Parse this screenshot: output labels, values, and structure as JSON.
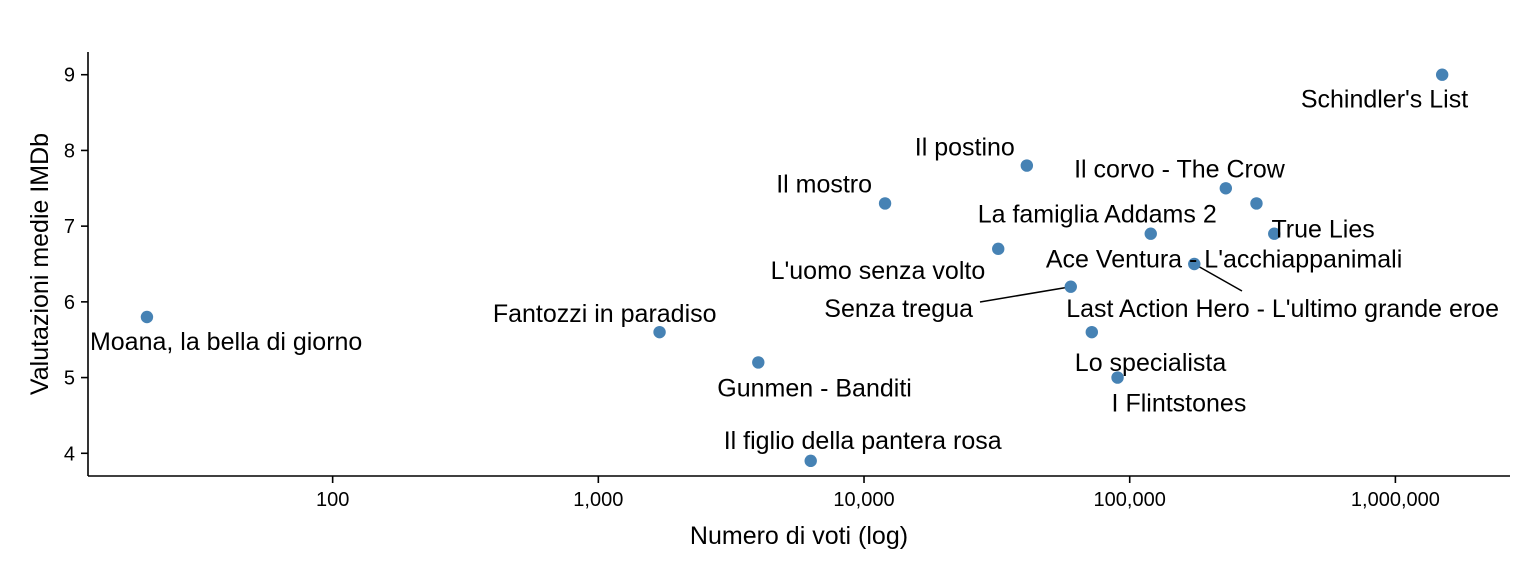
{
  "chart_data": {
    "type": "scatter",
    "xlabel": "Numero di voti (log)",
    "ylabel": "Valutazioni medie IMDb",
    "x_scale": "log",
    "xlim": [
      12,
      2700000
    ],
    "ylim": [
      3.7,
      9.3
    ],
    "x_ticks": [
      {
        "value": 100,
        "label": "100"
      },
      {
        "value": 1000,
        "label": "1,000"
      },
      {
        "value": 10000,
        "label": "10,000"
      },
      {
        "value": 100000,
        "label": "100,000"
      },
      {
        "value": 1000000,
        "label": "1,000,000"
      }
    ],
    "y_ticks": [
      {
        "value": 4,
        "label": "4"
      },
      {
        "value": 5,
        "label": "5"
      },
      {
        "value": 6,
        "label": "6"
      },
      {
        "value": 7,
        "label": "7"
      },
      {
        "value": 8,
        "label": "8"
      },
      {
        "value": 9,
        "label": "9"
      }
    ],
    "grid": false,
    "point_color": "#4682B4",
    "points": [
      {
        "label": "Moana, la bella di giorno",
        "x": 20,
        "y": 5.8
      },
      {
        "label": "Fantozzi in paradiso",
        "x": 1700,
        "y": 5.6
      },
      {
        "label": "Gunmen - Banditi",
        "x": 4000,
        "y": 5.2
      },
      {
        "label": "Il figlio della pantera rosa",
        "x": 6300,
        "y": 3.9
      },
      {
        "label": "Il mostro",
        "x": 12000,
        "y": 7.3
      },
      {
        "label": "L'uomo senza volto",
        "x": 32000,
        "y": 6.7
      },
      {
        "label": "Il postino",
        "x": 41000,
        "y": 7.8
      },
      {
        "label": "Senza tregua",
        "x": 60000,
        "y": 6.2
      },
      {
        "label": "Lo specialista",
        "x": 72000,
        "y": 5.6
      },
      {
        "label": "I Flintstones",
        "x": 90000,
        "y": 5.0
      },
      {
        "label": "La famiglia Addams 2",
        "x": 120000,
        "y": 6.9
      },
      {
        "label": "Last Action Hero - L'ultimo grande eroe",
        "x": 175000,
        "y": 6.5
      },
      {
        "label": "Il corvo - The Crow",
        "x": 230000,
        "y": 7.5
      },
      {
        "label": "True Lies",
        "x": 300000,
        "y": 7.3
      },
      {
        "label": "Ace Ventura - L'acchiappanimali",
        "x": 350000,
        "y": 6.9
      },
      {
        "label": "Schindler's List",
        "x": 1500000,
        "y": 9.0
      }
    ]
  }
}
